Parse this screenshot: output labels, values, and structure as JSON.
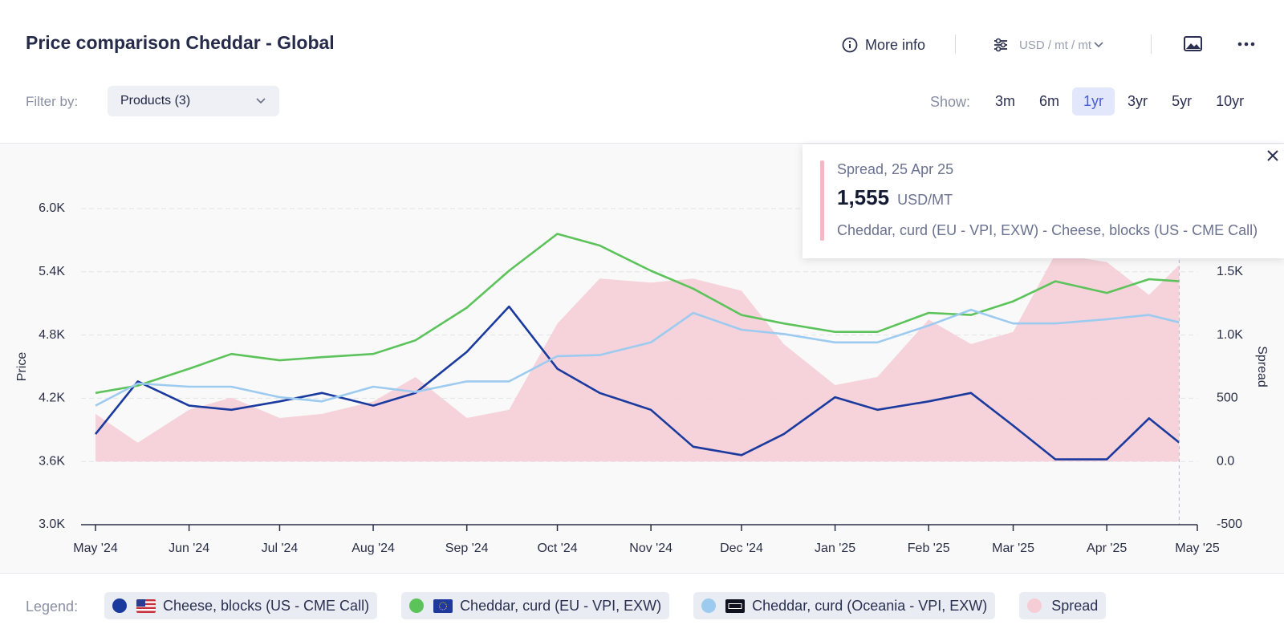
{
  "header": {
    "title": "Price comparison Cheddar - Global",
    "more_info": "More info",
    "unit_selector": "USD / mt / mt"
  },
  "filter": {
    "label": "Filter by:",
    "value": "Products (3)"
  },
  "range": {
    "label": "Show:",
    "options": [
      "3m",
      "6m",
      "1yr",
      "3yr",
      "5yr",
      "10yr"
    ],
    "selected_index": 2
  },
  "legend_label": "Legend:",
  "tooltip": {
    "title": "Spread, 25 Apr 25",
    "value": "1,555",
    "unit": "USD/MT",
    "description": "Cheddar, curd (EU - VPI, EXW) - Cheese, blocks (US - CME Call)"
  },
  "chart_data": {
    "type": "line",
    "y_label": "Price",
    "y2_label": "Spread",
    "x": [
      "2024-05-01",
      "2024-05-15",
      "2024-06-01",
      "2024-06-15",
      "2024-07-01",
      "2024-07-15",
      "2024-08-01",
      "2024-08-15",
      "2024-09-01",
      "2024-09-15",
      "2024-10-01",
      "2024-10-15",
      "2024-11-01",
      "2024-11-15",
      "2024-12-01",
      "2024-12-15",
      "2025-01-01",
      "2025-01-15",
      "2025-02-01",
      "2025-02-15",
      "2025-03-01",
      "2025-03-15",
      "2025-04-01",
      "2025-04-15",
      "2025-04-25"
    ],
    "xlim": [
      "2024-05-01",
      "2025-05-01"
    ],
    "xticks": [
      {
        "value": "2024-05-01",
        "label": "May '24"
      },
      {
        "value": "2024-06-01",
        "label": "Jun '24"
      },
      {
        "value": "2024-07-01",
        "label": "Jul '24"
      },
      {
        "value": "2024-08-01",
        "label": "Aug '24"
      },
      {
        "value": "2024-09-01",
        "label": "Sep '24"
      },
      {
        "value": "2024-10-01",
        "label": "Oct '24"
      },
      {
        "value": "2024-11-01",
        "label": "Nov '24"
      },
      {
        "value": "2024-12-01",
        "label": "Dec '24"
      },
      {
        "value": "2025-01-01",
        "label": "Jan '25"
      },
      {
        "value": "2025-02-01",
        "label": "Feb '25"
      },
      {
        "value": "2025-03-01",
        "label": "Mar '25"
      },
      {
        "value": "2025-04-01",
        "label": "Apr '25"
      },
      {
        "value": "2025-05-01",
        "label": "May '25"
      }
    ],
    "ylim": [
      3000,
      6000
    ],
    "yticks": [
      {
        "value": 3000,
        "label": "3.0K"
      },
      {
        "value": 3600,
        "label": "3.6K"
      },
      {
        "value": 4200,
        "label": "4.2K"
      },
      {
        "value": 4800,
        "label": "4.8K"
      },
      {
        "value": 5400,
        "label": "5.4K"
      },
      {
        "value": 6000,
        "label": "6.0K"
      }
    ],
    "y2lim": [
      -500,
      2000
    ],
    "y2ticks": [
      -500,
      {
        "value": 0,
        "label": "0.0"
      },
      500,
      {
        "value": 1000,
        "label": "1.0K"
      },
      {
        "value": 1500,
        "label": "1.5K"
      }
    ],
    "grid": true,
    "series": [
      {
        "name": "Cheese, blocks (US - CME Call)",
        "color": "#1b3a9e",
        "values": [
          3860,
          4360,
          4130,
          4090,
          4170,
          4250,
          4130,
          4250,
          4640,
          5070,
          4480,
          4250,
          4090,
          3740,
          3660,
          3860,
          4210,
          4090,
          4170,
          4250,
          3940,
          3620,
          3620,
          4010,
          3780
        ]
      },
      {
        "name": "Cheddar, curd (EU - VPI, EXW)",
        "color": "#5cc35a",
        "values": [
          4250,
          4320,
          4480,
          4620,
          4560,
          4590,
          4620,
          4750,
          5060,
          5410,
          5760,
          5650,
          5410,
          5240,
          4990,
          4910,
          4830,
          4830,
          5010,
          4990,
          5120,
          5310,
          5200,
          5330,
          5310
        ]
      },
      {
        "name": "Cheddar, curd (Oceania - VPI, EXW)",
        "color": "#9dcbf0",
        "values": [
          4130,
          4340,
          4310,
          4310,
          4210,
          4170,
          4310,
          4260,
          4360,
          4360,
          4600,
          4610,
          4730,
          5010,
          4850,
          4810,
          4730,
          4730,
          4890,
          5040,
          4910,
          4910,
          4950,
          4990,
          4920
        ]
      },
      {
        "name": "Spread",
        "color": "#f6ccd5",
        "axis": "y2",
        "kind": "area",
        "values": [
          376,
          149,
          409,
          506,
          344,
          376,
          474,
          668,
          344,
          409,
          1090,
          1447,
          1415,
          1447,
          1350,
          928,
          604,
          668,
          1123,
          928,
          1025,
          1642,
          1577,
          1317,
          1555
        ]
      }
    ]
  }
}
